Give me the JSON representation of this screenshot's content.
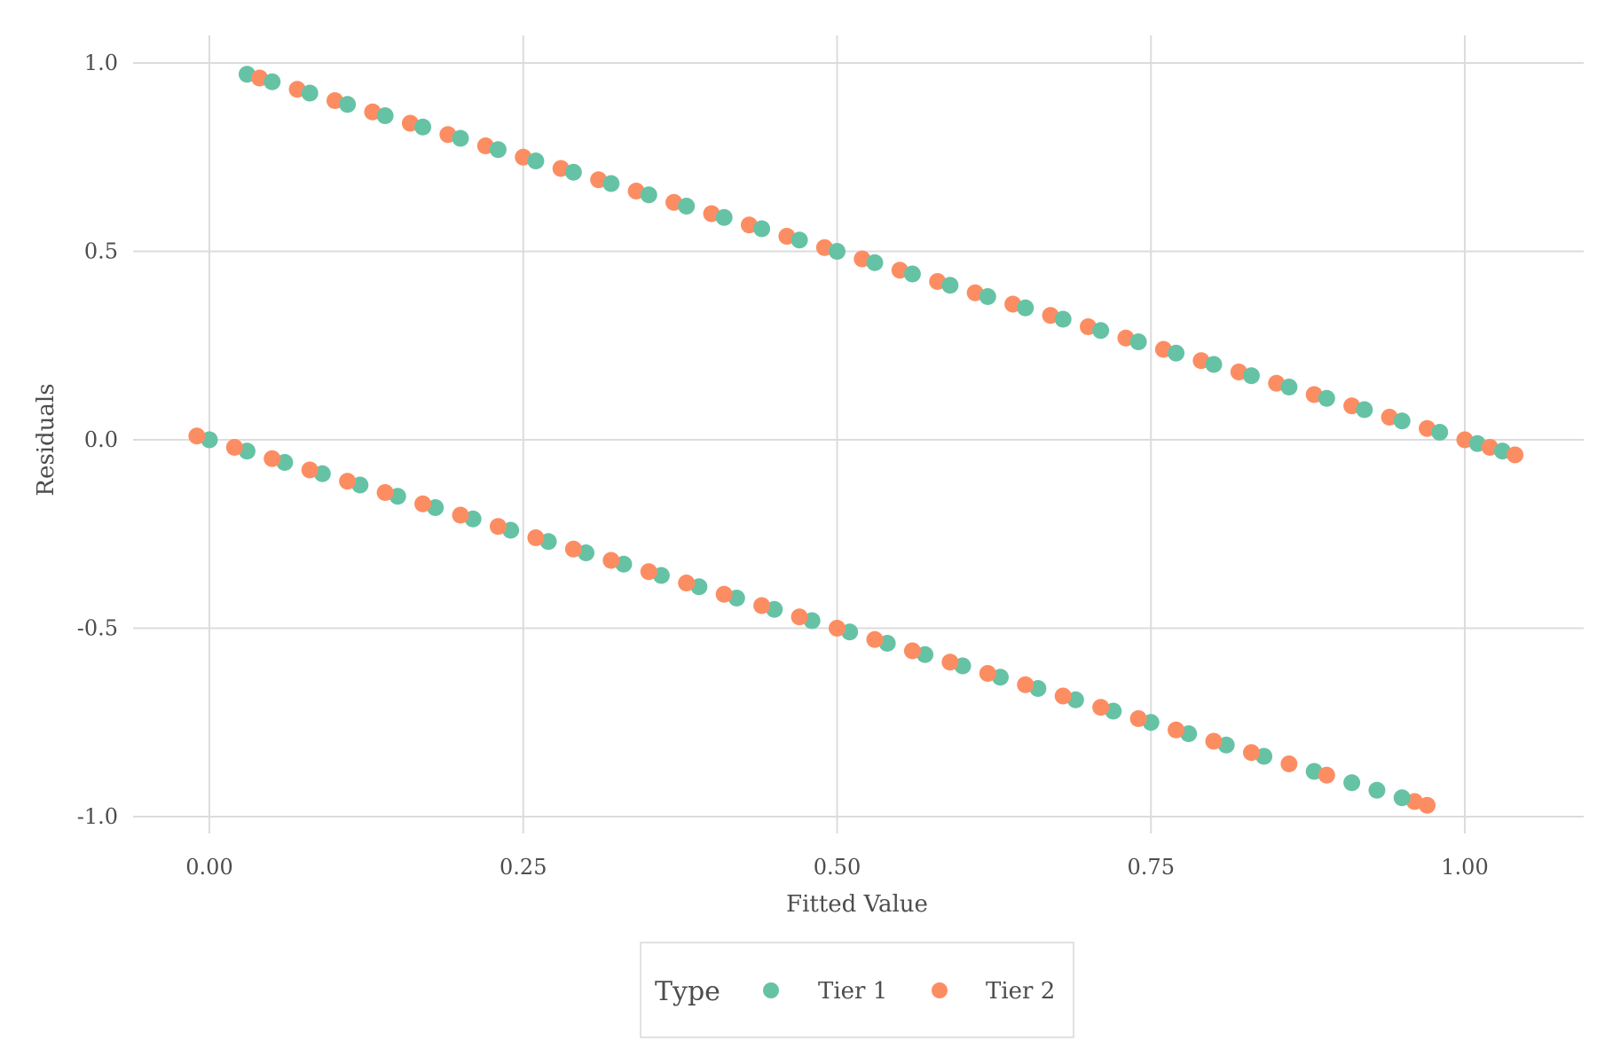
{
  "chart_data": {
    "type": "scatter",
    "title": "",
    "xlabel": "Fitted Value",
    "ylabel": "Residuals",
    "xlim": [
      -0.06,
      1.06
    ],
    "ylim": [
      -1.07,
      1.07
    ],
    "x_ticks": [
      0.0,
      0.25,
      0.5,
      0.75,
      1.0
    ],
    "x_tick_labels": [
      "0.00",
      "0.25",
      "0.50",
      "0.75",
      "1.00"
    ],
    "y_ticks": [
      1.0,
      0.5,
      0.0,
      -0.5,
      -1.0
    ],
    "y_tick_labels": [
      "1.0",
      "0.5",
      "0.0",
      "-0.5",
      "-1.0"
    ],
    "grid": true,
    "legend": {
      "title": "Type",
      "position": "bottom"
    },
    "series": [
      {
        "name": "Tier 1",
        "color": "#66c2a5",
        "points": [
          [
            0.03,
            0.97
          ],
          [
            0.05,
            0.95
          ],
          [
            0.08,
            0.92
          ],
          [
            0.11,
            0.89
          ],
          [
            0.14,
            0.86
          ],
          [
            0.17,
            0.83
          ],
          [
            0.2,
            0.8
          ],
          [
            0.23,
            0.77
          ],
          [
            0.26,
            0.74
          ],
          [
            0.29,
            0.71
          ],
          [
            0.32,
            0.68
          ],
          [
            0.35,
            0.65
          ],
          [
            0.38,
            0.62
          ],
          [
            0.41,
            0.59
          ],
          [
            0.44,
            0.56
          ],
          [
            0.47,
            0.53
          ],
          [
            0.5,
            0.5
          ],
          [
            0.53,
            0.47
          ],
          [
            0.56,
            0.44
          ],
          [
            0.59,
            0.41
          ],
          [
            0.62,
            0.38
          ],
          [
            0.65,
            0.35
          ],
          [
            0.68,
            0.32
          ],
          [
            0.71,
            0.29
          ],
          [
            0.74,
            0.26
          ],
          [
            0.77,
            0.23
          ],
          [
            0.8,
            0.2
          ],
          [
            0.83,
            0.17
          ],
          [
            0.86,
            0.14
          ],
          [
            0.89,
            0.11
          ],
          [
            0.92,
            0.08
          ],
          [
            0.95,
            0.05
          ],
          [
            0.98,
            0.02
          ],
          [
            1.01,
            -0.01
          ],
          [
            1.03,
            -0.03
          ],
          [
            0.0,
            0.0
          ],
          [
            0.03,
            -0.03
          ],
          [
            0.06,
            -0.06
          ],
          [
            0.09,
            -0.09
          ],
          [
            0.12,
            -0.12
          ],
          [
            0.15,
            -0.15
          ],
          [
            0.18,
            -0.18
          ],
          [
            0.21,
            -0.21
          ],
          [
            0.24,
            -0.24
          ],
          [
            0.27,
            -0.27
          ],
          [
            0.3,
            -0.3
          ],
          [
            0.33,
            -0.33
          ],
          [
            0.36,
            -0.36
          ],
          [
            0.39,
            -0.39
          ],
          [
            0.42,
            -0.42
          ],
          [
            0.45,
            -0.45
          ],
          [
            0.48,
            -0.48
          ],
          [
            0.51,
            -0.51
          ],
          [
            0.54,
            -0.54
          ],
          [
            0.57,
            -0.57
          ],
          [
            0.6,
            -0.6
          ],
          [
            0.63,
            -0.63
          ],
          [
            0.66,
            -0.66
          ],
          [
            0.69,
            -0.69
          ],
          [
            0.72,
            -0.72
          ],
          [
            0.75,
            -0.75
          ],
          [
            0.78,
            -0.78
          ],
          [
            0.81,
            -0.81
          ],
          [
            0.84,
            -0.84
          ],
          [
            0.88,
            -0.88
          ],
          [
            0.91,
            -0.91
          ],
          [
            0.93,
            -0.93
          ],
          [
            0.95,
            -0.95
          ]
        ]
      },
      {
        "name": "Tier 2",
        "color": "#fc8d62",
        "points": [
          [
            0.04,
            0.96
          ],
          [
            0.07,
            0.93
          ],
          [
            0.1,
            0.9
          ],
          [
            0.13,
            0.87
          ],
          [
            0.16,
            0.84
          ],
          [
            0.19,
            0.81
          ],
          [
            0.22,
            0.78
          ],
          [
            0.25,
            0.75
          ],
          [
            0.28,
            0.72
          ],
          [
            0.31,
            0.69
          ],
          [
            0.34,
            0.66
          ],
          [
            0.37,
            0.63
          ],
          [
            0.4,
            0.6
          ],
          [
            0.43,
            0.57
          ],
          [
            0.46,
            0.54
          ],
          [
            0.49,
            0.51
          ],
          [
            0.52,
            0.48
          ],
          [
            0.55,
            0.45
          ],
          [
            0.58,
            0.42
          ],
          [
            0.61,
            0.39
          ],
          [
            0.64,
            0.36
          ],
          [
            0.67,
            0.33
          ],
          [
            0.7,
            0.3
          ],
          [
            0.73,
            0.27
          ],
          [
            0.76,
            0.24
          ],
          [
            0.79,
            0.21
          ],
          [
            0.82,
            0.18
          ],
          [
            0.85,
            0.15
          ],
          [
            0.88,
            0.12
          ],
          [
            0.91,
            0.09
          ],
          [
            0.94,
            0.06
          ],
          [
            0.97,
            0.03
          ],
          [
            1.0,
            0.0
          ],
          [
            1.02,
            -0.02
          ],
          [
            1.04,
            -0.04
          ],
          [
            -0.01,
            0.01
          ],
          [
            0.02,
            -0.02
          ],
          [
            0.05,
            -0.05
          ],
          [
            0.08,
            -0.08
          ],
          [
            0.11,
            -0.11
          ],
          [
            0.14,
            -0.14
          ],
          [
            0.17,
            -0.17
          ],
          [
            0.2,
            -0.2
          ],
          [
            0.23,
            -0.23
          ],
          [
            0.26,
            -0.26
          ],
          [
            0.29,
            -0.29
          ],
          [
            0.32,
            -0.32
          ],
          [
            0.35,
            -0.35
          ],
          [
            0.38,
            -0.38
          ],
          [
            0.41,
            -0.41
          ],
          [
            0.44,
            -0.44
          ],
          [
            0.47,
            -0.47
          ],
          [
            0.5,
            -0.5
          ],
          [
            0.53,
            -0.53
          ],
          [
            0.56,
            -0.56
          ],
          [
            0.59,
            -0.59
          ],
          [
            0.62,
            -0.62
          ],
          [
            0.65,
            -0.65
          ],
          [
            0.68,
            -0.68
          ],
          [
            0.71,
            -0.71
          ],
          [
            0.74,
            -0.74
          ],
          [
            0.77,
            -0.77
          ],
          [
            0.8,
            -0.8
          ],
          [
            0.83,
            -0.83
          ],
          [
            0.86,
            -0.86
          ],
          [
            0.89,
            -0.89
          ],
          [
            0.96,
            -0.96
          ],
          [
            0.97,
            -0.97
          ]
        ]
      }
    ]
  }
}
